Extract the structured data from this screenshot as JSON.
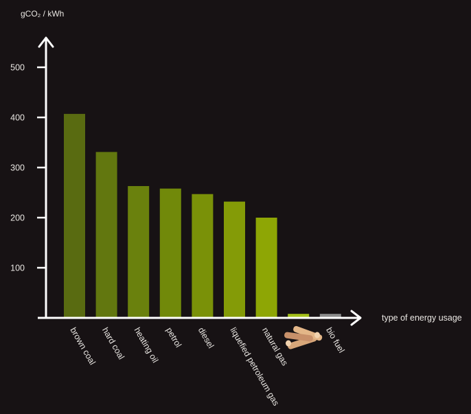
{
  "chart_data": {
    "type": "bar",
    "title": "",
    "ylabel": "gCO₂ / kWh",
    "xlabel": "type of energy usage",
    "ylim": [
      0,
      500
    ],
    "yticks": [
      100,
      200,
      300,
      400,
      500
    ],
    "categories": [
      "brown coal",
      "hard coal",
      "heating oil",
      "petrol",
      "diesel",
      "liquefied petroleum gas",
      "natural gas",
      "",
      "bio fuel"
    ],
    "values": [
      407,
      331,
      263,
      258,
      247,
      232,
      200,
      8,
      8
    ],
    "colors": [
      "#596b11",
      "#62770f",
      "#6a810d",
      "#71890a",
      "#7a9108",
      "#849b07",
      "#8ea605",
      "#a4c01a",
      "#8c8c8c"
    ],
    "grid": false,
    "legend": "none",
    "icons": [
      "wood-logs-icon"
    ]
  }
}
